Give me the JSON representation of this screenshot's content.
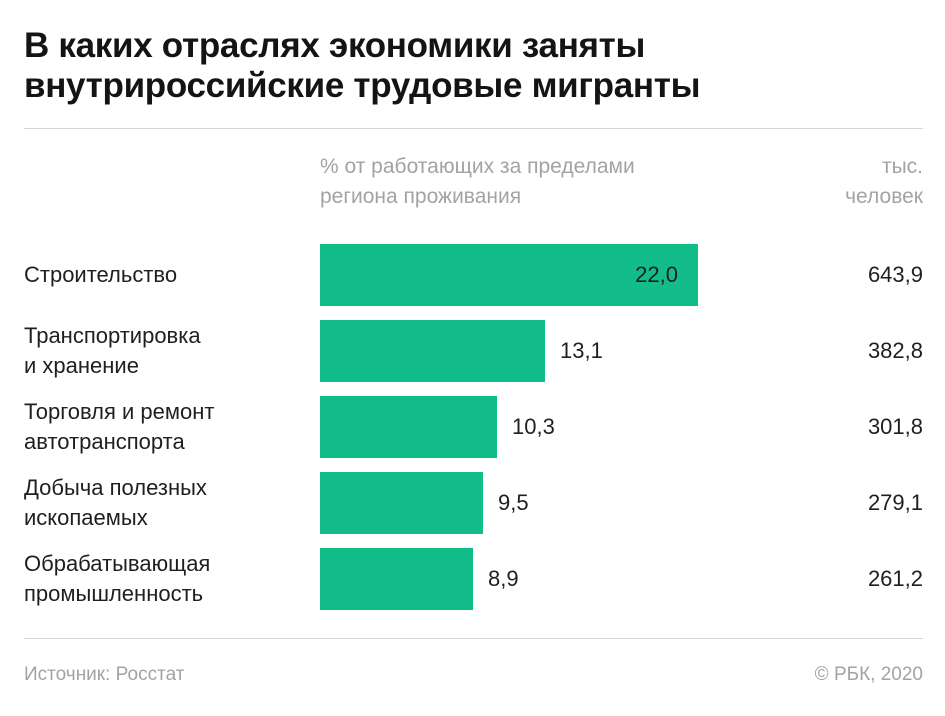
{
  "chart_data": {
    "type": "bar",
    "orientation": "horizontal",
    "title": "В каких отраслях экономики заняты внутрироссийские трудовые мигранты",
    "title_lines": [
      "В каких отраслях экономики заняты",
      "внутрироссийские трудовые мигранты"
    ],
    "value_header": "% от работающих за пределами региона проживания",
    "value_header_lines": [
      "% от работающих за пределами",
      "региона проживания"
    ],
    "abs_header": "тыс. человек",
    "abs_header_lines": [
      "тыс.",
      "человек"
    ],
    "categories": [
      "Строительство",
      "Транспортировка и хранение",
      "Торговля и ремонт автотранспорта",
      "Добыча полезных ископаемых",
      "Обрабатывающая промышленность"
    ],
    "category_lines": [
      [
        "Строительство"
      ],
      [
        "Транспортировка",
        "и хранение"
      ],
      [
        "Торговля и ремонт",
        "автотранспорта"
      ],
      [
        "Добыча полезных",
        "ископаемых"
      ],
      [
        "Обрабатывающая",
        "промышленность"
      ]
    ],
    "values": [
      22.0,
      13.1,
      10.3,
      9.5,
      8.9
    ],
    "value_labels": [
      "22,0",
      "13,1",
      "10,3",
      "9,5",
      "8,9"
    ],
    "abs_values": [
      643.9,
      382.8,
      301.8,
      279.1,
      261.2
    ],
    "abs_labels": [
      "643,9",
      "382,8",
      "301,8",
      "279,1",
      "261,2"
    ],
    "xlim": [
      0,
      22.0
    ],
    "bar_color": "#13bd8a",
    "xlabel": "",
    "ylabel": ""
  },
  "footer": {
    "source": "Источник: Росстат",
    "copyright": "© РБК, 2020"
  }
}
